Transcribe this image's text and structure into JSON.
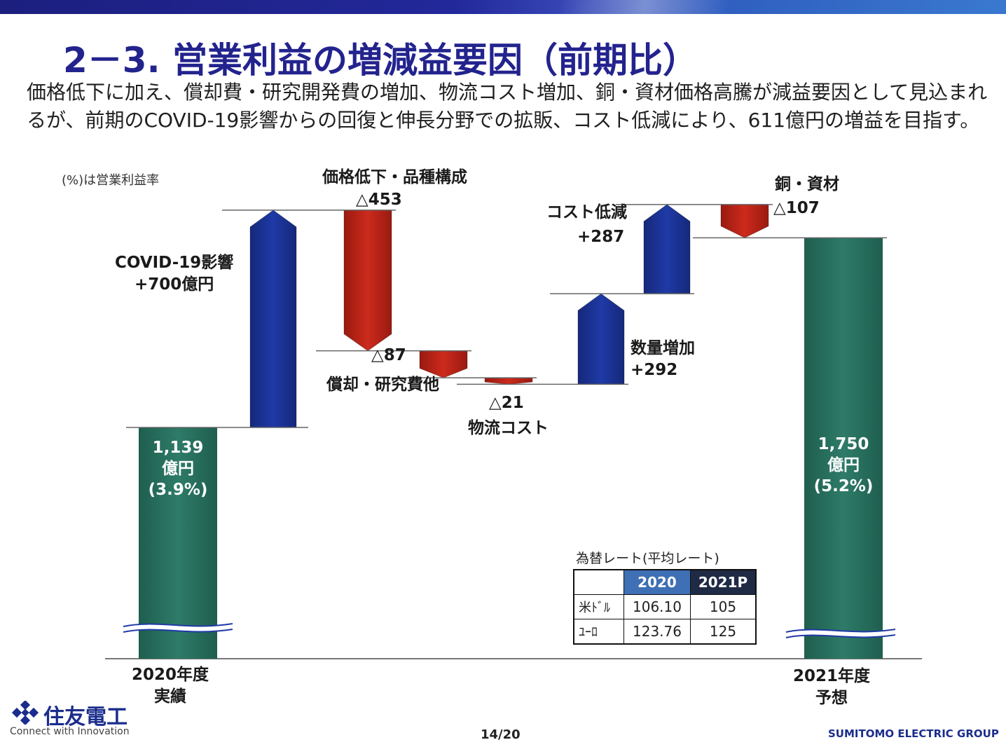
{
  "title": "2－3. 営業利益の増減益要因（前期比）",
  "description": "価格低下に加え、償却費・研究開発費の増加、物流コスト増加、銅・資材価格高騰が減益要因として見込まれるが、前期のCOVID-19影響からの回復と伸長分野での拡販、コスト低減により、611億円の増益を目指す。",
  "note": "(%)は営業利益率",
  "colors": {
    "title": "#23238e",
    "total": "#2e7b68",
    "increase": "#1f3aa6",
    "decrease": "#cc2a1c"
  },
  "chart_data": {
    "type": "waterfall",
    "unit": "億円",
    "start": {
      "value": 1139,
      "label": "1,139",
      "unit_label": "億円",
      "ratio": "(3.9%)",
      "axis_label": [
        "2020年度",
        "実績"
      ]
    },
    "steps": [
      {
        "name": "COVID-19影響",
        "value_label": "+700億円",
        "delta": 700
      },
      {
        "name": "価格低下・品種構成",
        "value_label": "△453",
        "delta": -453
      },
      {
        "name": "償却・研究費他",
        "value_label": "△87",
        "delta": -87
      },
      {
        "name": "物流コスト",
        "value_label": "△21",
        "delta": -21
      },
      {
        "name": "数量増加",
        "value_label": "+292",
        "delta": 292
      },
      {
        "name": "コスト低減",
        "value_label": "+287",
        "delta": 287
      },
      {
        "name": "銅・資材",
        "value_label": "△107",
        "delta": -107
      }
    ],
    "end": {
      "value": 1750,
      "label": "1,750",
      "unit_label": "億円",
      "ratio": "(5.2%)",
      "axis_label": [
        "2021年度",
        "予想"
      ]
    },
    "axis_break": true
  },
  "fx_table": {
    "title": "為替レート(平均レート)",
    "headers": [
      "",
      "2020",
      "2021P"
    ],
    "rows": [
      [
        "米ﾄﾞﾙ",
        "106.10",
        "105"
      ],
      [
        "ﾕｰﾛ",
        "123.76",
        "125"
      ]
    ]
  },
  "footer": {
    "company": "住友電工",
    "tagline": "Connect with Innovation",
    "page": "14/20",
    "group": "SUMITOMO ELECTRIC GROUP"
  }
}
